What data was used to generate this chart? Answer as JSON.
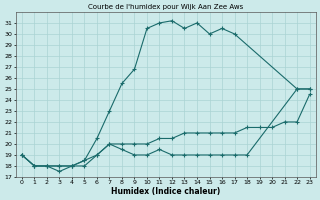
{
  "title": "Courbe de l'humidex pour Wijk Aan Zee Aws",
  "xlabel": "Humidex (Indice chaleur)",
  "bg_color": "#cceaea",
  "line_color": "#1a6b6b",
  "grid_color": "#aad4d4",
  "xlim": [
    -0.5,
    23.5
  ],
  "ylim": [
    17,
    32
  ],
  "yticks": [
    17,
    18,
    19,
    20,
    21,
    22,
    23,
    24,
    25,
    26,
    27,
    28,
    29,
    30,
    31
  ],
  "xticks": [
    0,
    1,
    2,
    3,
    4,
    5,
    6,
    7,
    8,
    9,
    10,
    11,
    12,
    13,
    14,
    15,
    16,
    17,
    18,
    19,
    20,
    21,
    22,
    23
  ],
  "series": [
    {
      "x": [
        0,
        1,
        2,
        3,
        4,
        5,
        6,
        7,
        8,
        9,
        10,
        11,
        12,
        13,
        14,
        15,
        16,
        17,
        22,
        23
      ],
      "y": [
        19,
        18,
        18,
        17.5,
        18,
        18.5,
        20.5,
        23,
        25.5,
        26.8,
        30.5,
        31,
        31.2,
        30.5,
        31,
        30,
        30.5,
        30,
        25,
        25
      ]
    },
    {
      "x": [
        0,
        1,
        2,
        3,
        4,
        5,
        6,
        7,
        8,
        9,
        10,
        11,
        12,
        13,
        14,
        15,
        16,
        17,
        18,
        19,
        20,
        21,
        22,
        23
      ],
      "y": [
        19,
        18,
        18,
        18,
        18,
        18.5,
        19,
        20,
        20,
        20,
        20,
        20.5,
        20.5,
        21,
        21,
        21,
        21,
        21,
        21.5,
        21.5,
        21.5,
        22,
        22,
        24.5
      ]
    },
    {
      "x": [
        0,
        1,
        2,
        3,
        4,
        5,
        6,
        7,
        8,
        9,
        10,
        11,
        12,
        13,
        14,
        15,
        16,
        17,
        18,
        22,
        23
      ],
      "y": [
        19,
        18,
        18,
        18,
        18,
        18,
        19,
        20,
        19.5,
        19,
        19,
        19.5,
        19,
        19,
        19,
        19,
        19,
        19,
        19,
        25,
        25
      ]
    }
  ]
}
